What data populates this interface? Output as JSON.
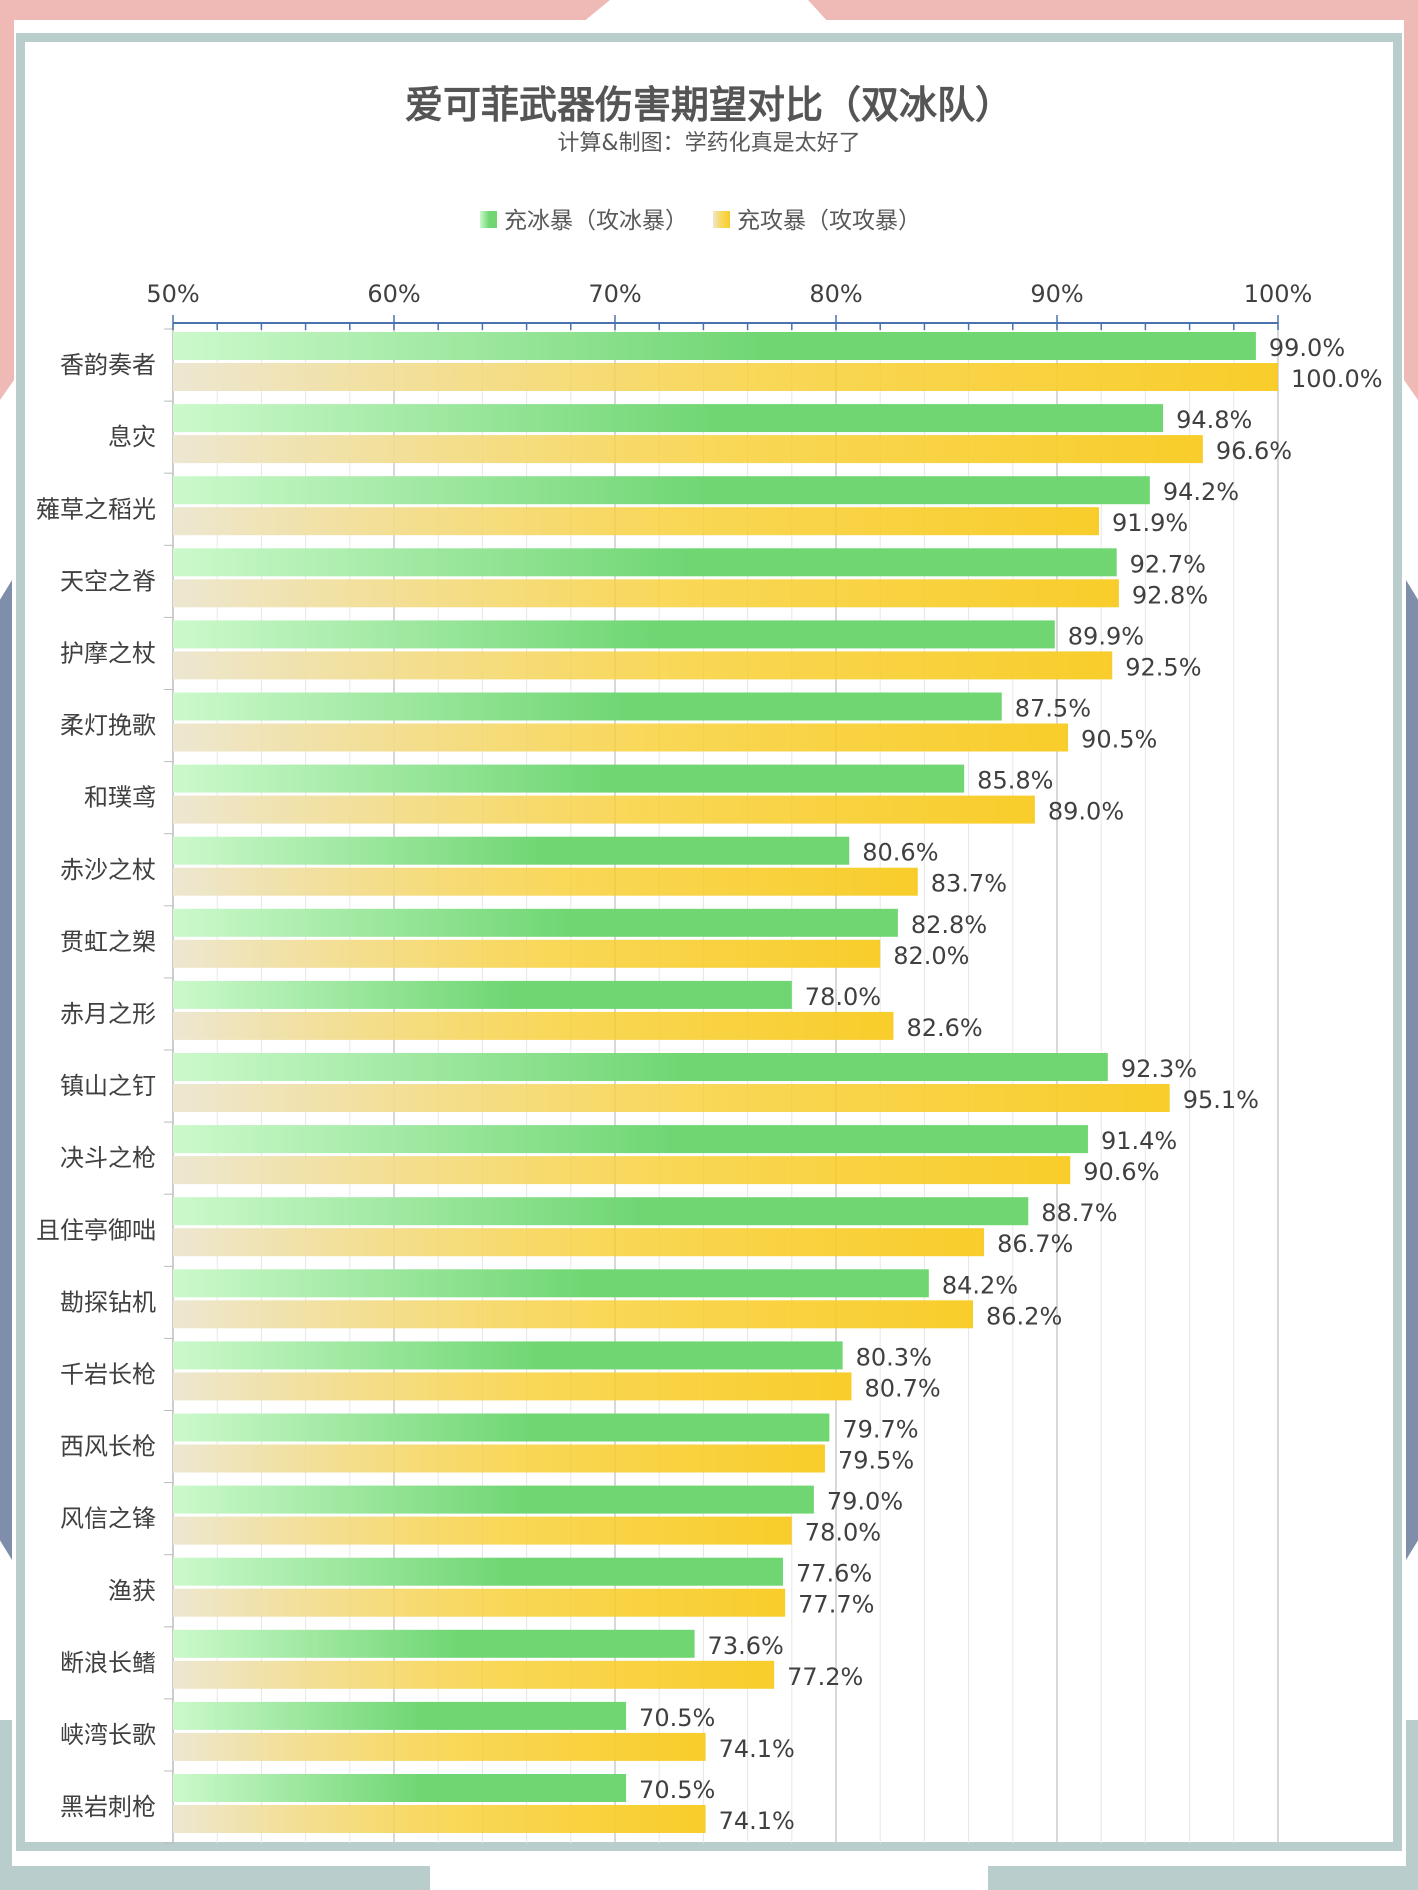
{
  "chart_data": {
    "type": "bar",
    "orientation": "horizontal",
    "title": "爱可菲武器伤害期望对比（双冰队）",
    "subtitle": "计算&制图：学药化真是太好了",
    "categories": [
      "香韵奏者",
      "息灾",
      "薙草之稻光",
      "天空之脊",
      "护摩之杖",
      "柔灯挽歌",
      "和璞鸢",
      "赤沙之杖",
      "贯虹之槊",
      "赤月之形",
      "镇山之钉",
      "决斗之枪",
      "且住亭御咄",
      "勘探钻机",
      "千岩长枪",
      "西风长枪",
      "风信之锋",
      "渔获",
      "断浪长鳍",
      "峡湾长歌",
      "黑岩刺枪"
    ],
    "series": [
      {
        "name": "充冰暴（攻冰暴）",
        "values": [
          99.0,
          94.8,
          94.2,
          92.7,
          89.9,
          87.5,
          85.8,
          80.6,
          82.8,
          78.0,
          92.3,
          91.4,
          88.7,
          84.2,
          80.3,
          79.7,
          79.0,
          77.6,
          73.6,
          70.5,
          70.5
        ],
        "labels": [
          "99.0%",
          "94.8%",
          "94.2%",
          "92.7%",
          "89.9%",
          "87.5%",
          "85.8%",
          "80.6%",
          "82.8%",
          "78.0%",
          "92.3%",
          "91.4%",
          "88.7%",
          "84.2%",
          "80.3%",
          "79.7%",
          "79.0%",
          "77.6%",
          "73.6%",
          "70.5%",
          "70.5%"
        ],
        "color_start": "#ccf9cc",
        "color_end": "#6fd672"
      },
      {
        "name": "充攻暴（攻攻暴）",
        "values": [
          100.0,
          96.6,
          91.9,
          92.8,
          92.5,
          90.5,
          89.0,
          83.7,
          82.0,
          82.6,
          95.1,
          90.6,
          86.7,
          86.2,
          80.7,
          79.5,
          78.0,
          77.7,
          77.2,
          74.1,
          74.1
        ],
        "labels": [
          "100.0%",
          "96.6%",
          "91.9%",
          "92.8%",
          "92.5%",
          "90.5%",
          "89.0%",
          "83.7%",
          "82.0%",
          "82.6%",
          "95.1%",
          "90.6%",
          "86.7%",
          "86.2%",
          "80.7%",
          "79.5%",
          "78.0%",
          "77.7%",
          "77.2%",
          "74.1%",
          "74.1%"
        ],
        "color_start": "#ede7d2",
        "color_end": "#f8cd2b"
      }
    ],
    "x_ticks": [
      "50%",
      "60%",
      "70%",
      "80%",
      "90%",
      "100%"
    ],
    "xlim": [
      50,
      100
    ],
    "axis_position": "top",
    "legend_position": "top-center",
    "grid": true
  },
  "colors": {
    "frame": "#b9cdcc",
    "accent_pink": "#efb9b6",
    "accent_navy": "#7f8eaa",
    "axis": "#4a72b0"
  }
}
